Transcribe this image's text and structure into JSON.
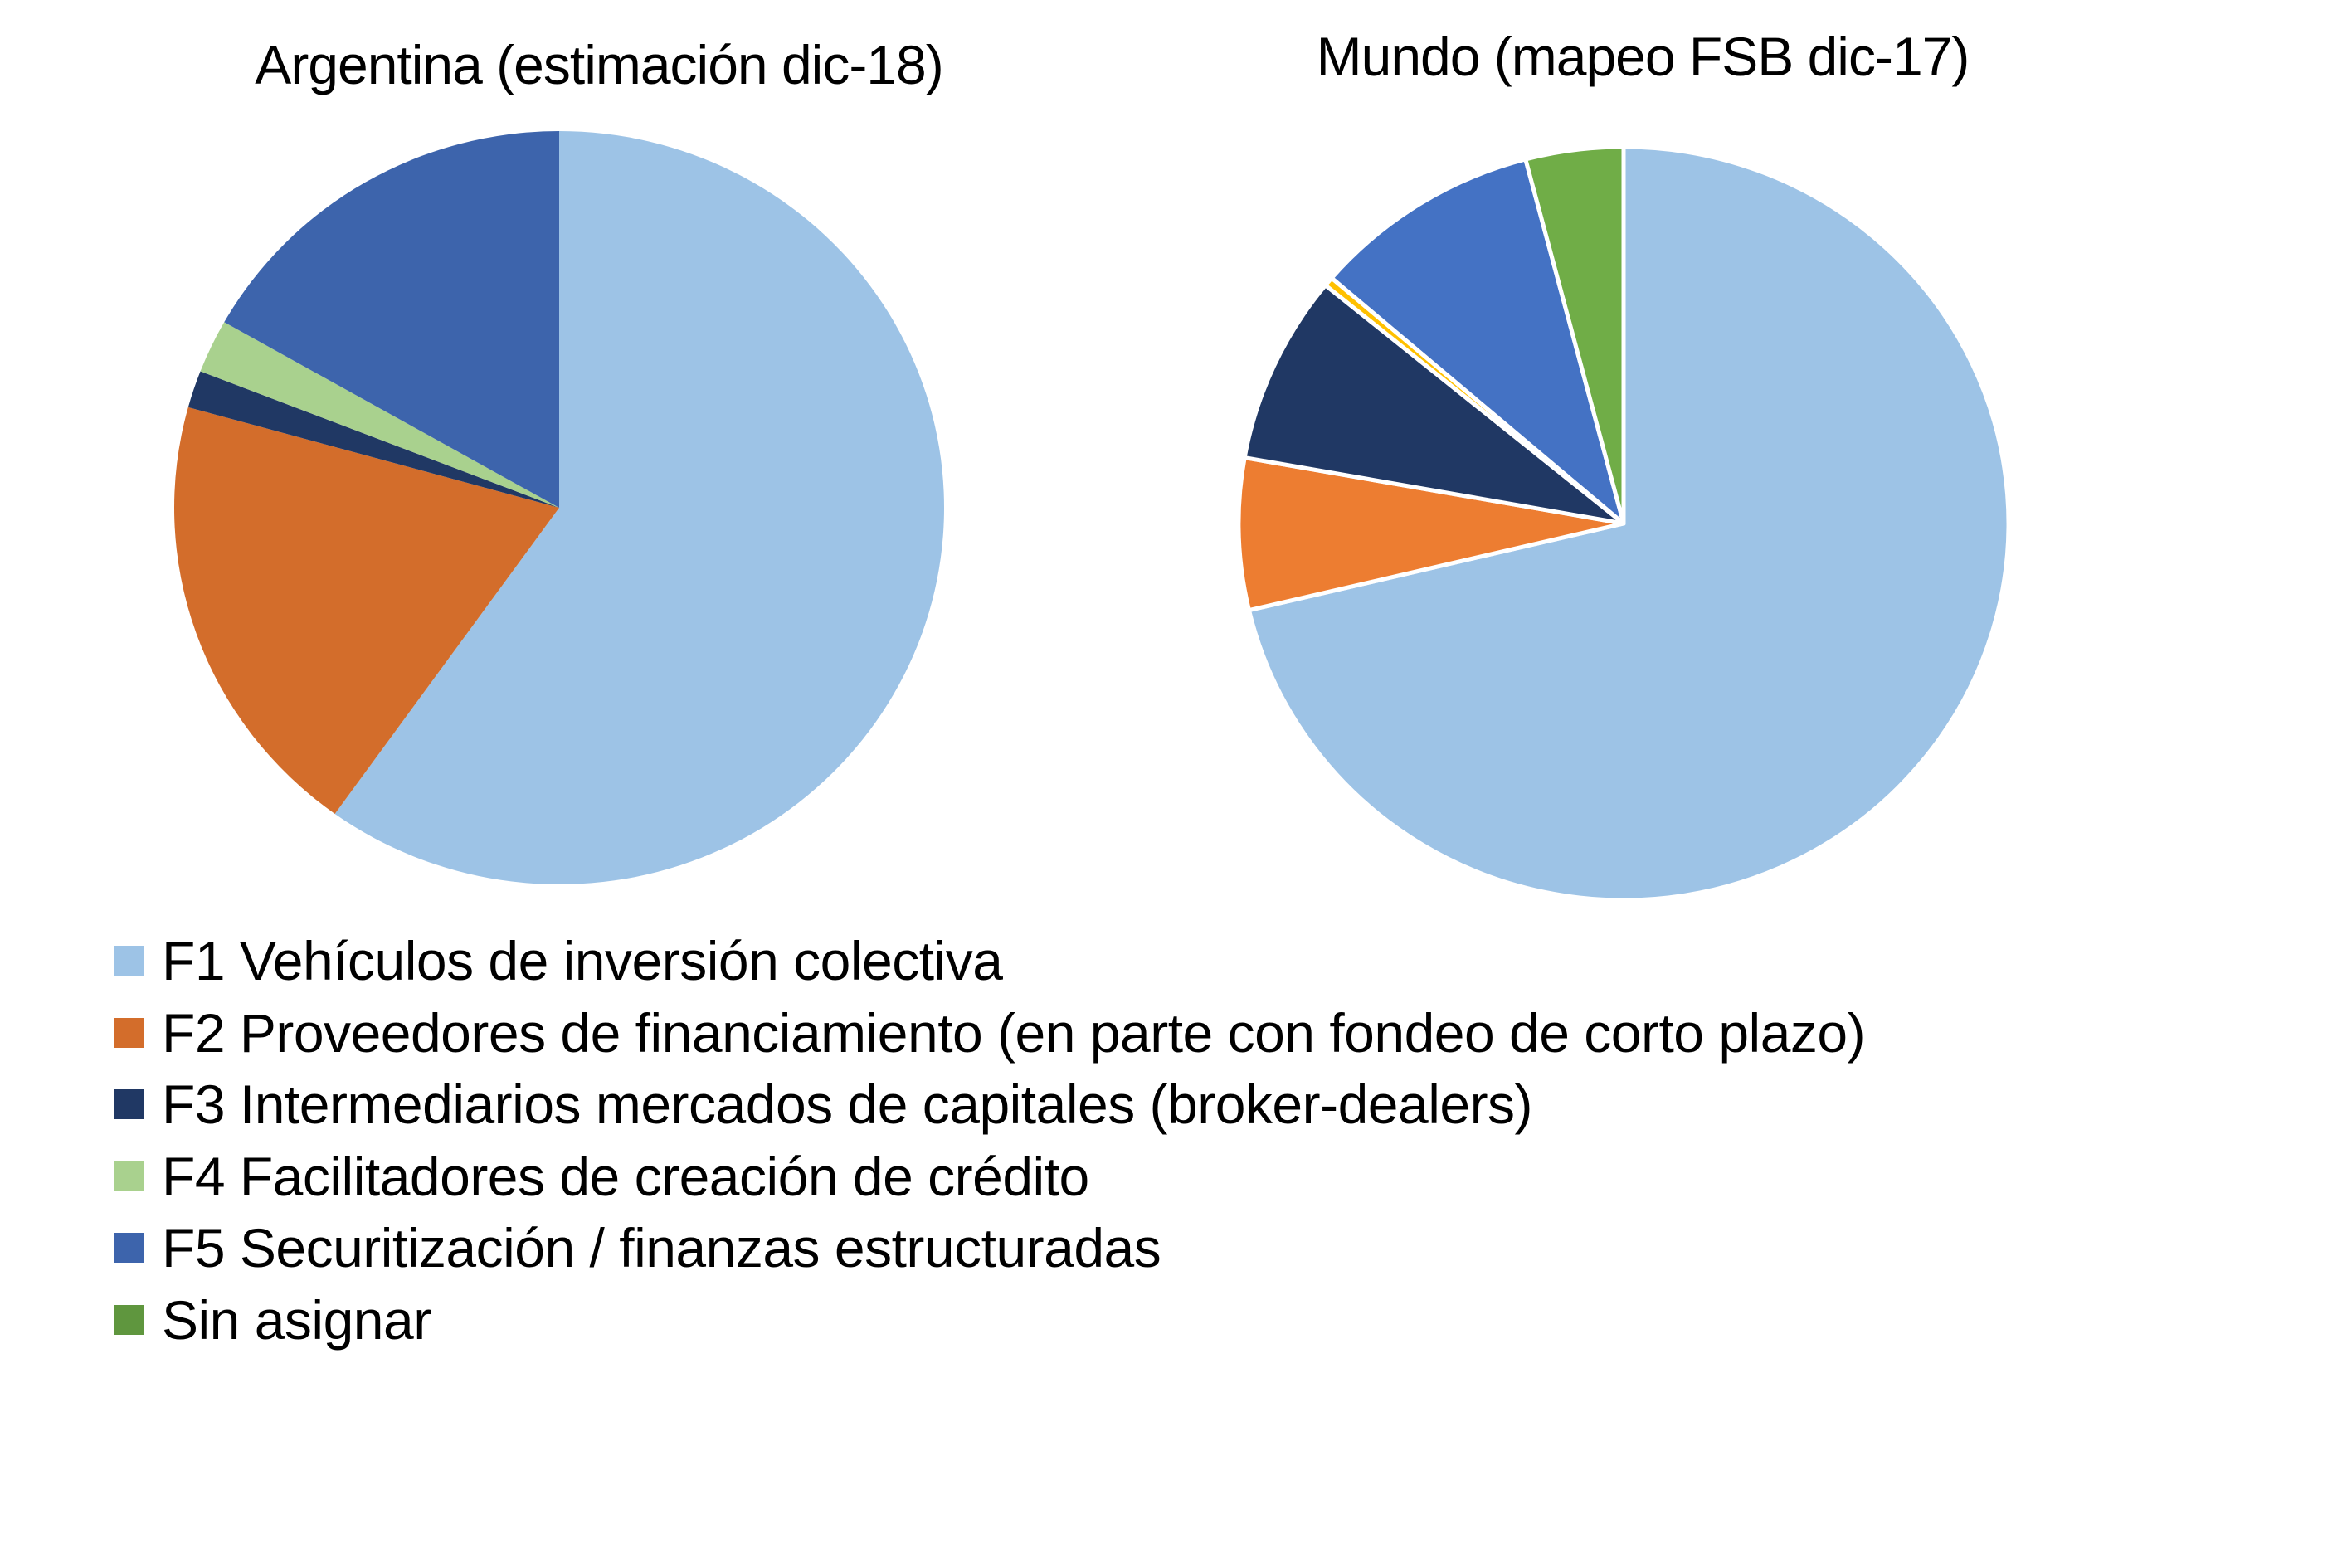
{
  "chart_data": [
    {
      "type": "pie",
      "title": "Argentina (estimación dic-18)",
      "categories": [
        "F1 Vehículos de inversión colectiva",
        "F2 Proveedores de financiamiento (en parte con fondeo de corto plazo)",
        "F3 Intermediarios mercados de capitales (broker-dealers)",
        "F4 Facilitadores de creación de crédito",
        "F5 Securitización / finanzas estructuradas",
        "Sin asignar"
      ],
      "values": [
        59.9,
        19.4,
        1.6,
        2.3,
        16.8,
        0.0
      ],
      "unit": "% (estimated from slice angles)",
      "colors": [
        "#9DC3E6",
        "#D36D2B",
        "#203864",
        "#A9D18E",
        "#3D64AC",
        "#5F963E"
      ],
      "start_angle": "12 o'clock, clockwise",
      "slice_borders": false
    },
    {
      "type": "pie",
      "title": "Mundo (mapeo FSB dic-17)",
      "categories": [
        "F1 Vehículos de inversión colectiva",
        "F2 Proveedores de financiamiento (en parte con fondeo de corto plazo)",
        "F3 Intermediarios mercados de capitales (broker-dealers)",
        "F4 Facilitadores de creación de crédito",
        "F5 Securitización / finanzas estructuradas",
        "Sin asignar"
      ],
      "values": [
        71.3,
        6.5,
        8.1,
        0.4,
        9.6,
        4.1
      ],
      "unit": "% (estimated from slice angles)",
      "colors": [
        "#9DC3E6",
        "#ED7D31",
        "#203864",
        "#FFC000",
        "#4472C4",
        "#70AD47"
      ],
      "start_angle": "12 o'clock, clockwise",
      "slice_borders": true
    }
  ],
  "titles": {
    "argentina": "Argentina (estimación dic-18)",
    "mundo": "Mundo (mapeo FSB dic-17)"
  },
  "legend": {
    "position": "bottom-left",
    "items": [
      {
        "label": "F1 Vehículos de inversión colectiva",
        "color": "#9DC3E6"
      },
      {
        "label": "F2 Proveedores de financiamiento (en parte con fondeo de corto plazo)",
        "color": "#D36D2B"
      },
      {
        "label": "F3 Intermediarios mercados de capitales (broker-dealers)",
        "color": "#203864"
      },
      {
        "label": "F4 Facilitadores de creación de crédito",
        "color": "#A9D18E"
      },
      {
        "label": "F5 Securitización / finanzas estructuradas",
        "color": "#3D64AC"
      },
      {
        "label": "Sin asignar",
        "color": "#5F963E"
      }
    ]
  }
}
